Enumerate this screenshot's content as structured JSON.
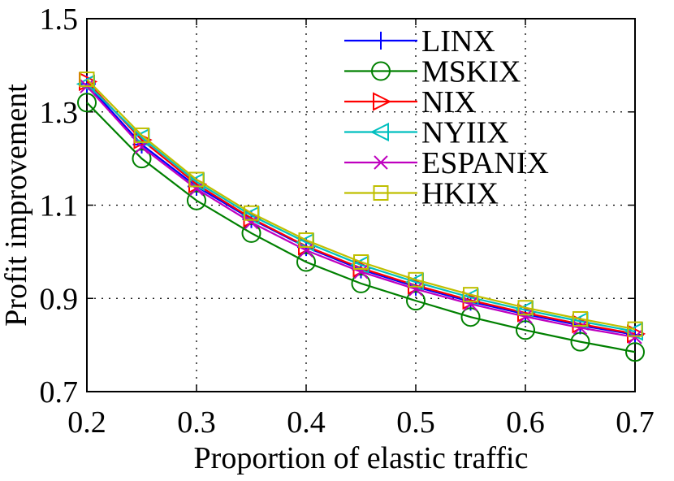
{
  "chart_data": {
    "type": "line",
    "xlabel": "Proportion of elastic traffic",
    "ylabel": "Profit improvement",
    "xlim": [
      0.2,
      0.7
    ],
    "ylim": [
      0.7,
      1.5
    ],
    "xticks": [
      0.2,
      0.3,
      0.4,
      0.5,
      0.6,
      0.7
    ],
    "yticks": [
      0.7,
      0.9,
      1.1,
      1.3,
      1.5
    ],
    "xtick_labels": [
      "0.2",
      "0.3",
      "0.4",
      "0.5",
      "0.6",
      "0.7"
    ],
    "ytick_labels": [
      "0.7",
      "0.9",
      "1.1",
      "1.3",
      "1.5"
    ],
    "grid": true,
    "legend_position": "top-right",
    "x": [
      0.2,
      0.25,
      0.3,
      0.35,
      0.4,
      0.45,
      0.5,
      0.55,
      0.6,
      0.65,
      0.7
    ],
    "series": [
      {
        "name": "LINX",
        "color": "#0000ff",
        "marker": "plus",
        "values": [
          1.36,
          1.23,
          1.14,
          1.07,
          1.01,
          0.962,
          0.925,
          0.893,
          0.866,
          0.842,
          0.822
        ]
      },
      {
        "name": "MSKIX",
        "color": "#008000",
        "marker": "circle",
        "values": [
          1.32,
          1.2,
          1.11,
          1.04,
          0.978,
          0.932,
          0.895,
          0.86,
          0.832,
          0.807,
          0.785
        ]
      },
      {
        "name": "NIX",
        "color": "#ff0000",
        "marker": "triangle-right",
        "values": [
          1.365,
          1.24,
          1.145,
          1.072,
          1.012,
          0.965,
          0.928,
          0.896,
          0.869,
          0.845,
          0.824
        ]
      },
      {
        "name": "NYIIX",
        "color": "#00bfbf",
        "marker": "triangle-left",
        "values": [
          1.36,
          1.245,
          1.15,
          1.078,
          1.02,
          0.972,
          0.935,
          0.902,
          0.875,
          0.851,
          0.829
        ]
      },
      {
        "name": "ESPANIX",
        "color": "#bf00bf",
        "marker": "x",
        "values": [
          1.355,
          1.225,
          1.135,
          1.063,
          1.003,
          0.957,
          0.92,
          0.888,
          0.861,
          0.837,
          0.817
        ]
      },
      {
        "name": "HKIX",
        "color": "#bfbf00",
        "marker": "square",
        "values": [
          1.37,
          1.25,
          1.155,
          1.083,
          1.025,
          0.978,
          0.94,
          0.908,
          0.88,
          0.856,
          0.834
        ]
      }
    ]
  }
}
